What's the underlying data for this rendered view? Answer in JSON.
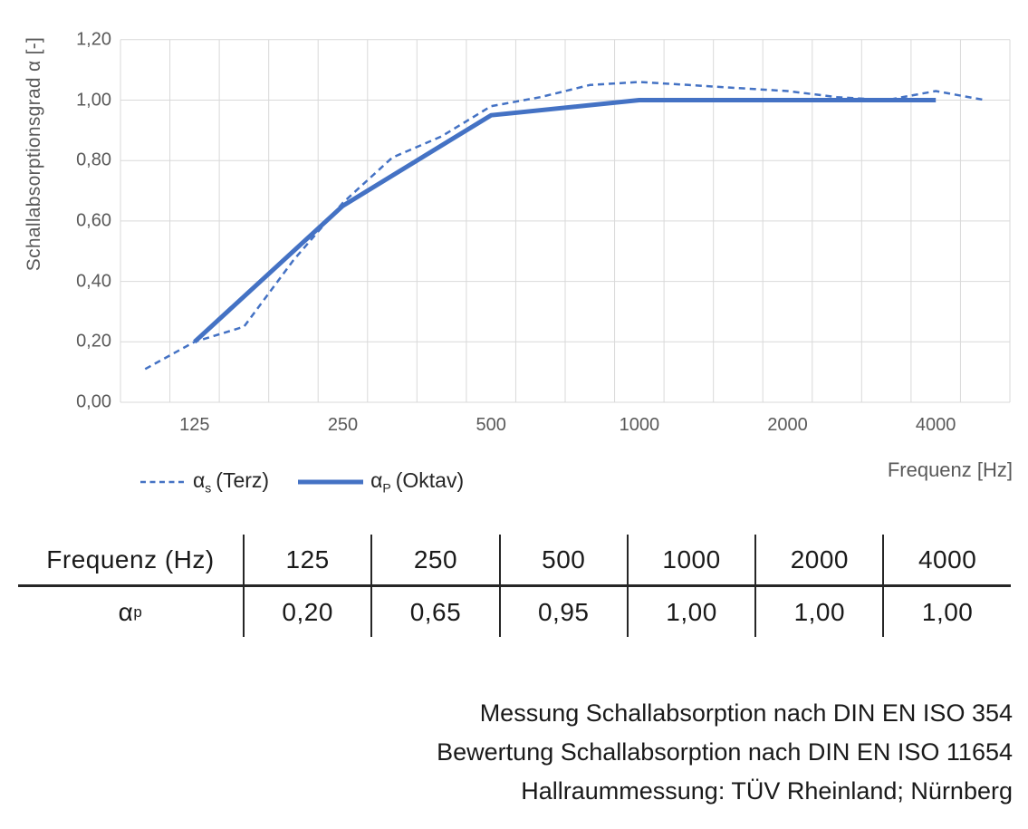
{
  "chart": {
    "y_axis_title": "Schallabsorptionsgrad α [-]",
    "x_axis_title": "Frequenz [Hz]",
    "y_tick_labels": [
      "1,20",
      "1,00",
      "0,80",
      "0,60",
      "0,40",
      "0,20",
      "0,00"
    ]
  },
  "chart_data": {
    "type": "line",
    "title": "",
    "xlabel": "Frequenz [Hz]",
    "ylabel": "Schallabsorptionsgrad α [-]",
    "x_categories": [
      "100",
      "125",
      "160",
      "200",
      "250",
      "315",
      "400",
      "500",
      "630",
      "800",
      "1000",
      "1250",
      "1600",
      "2000",
      "2500",
      "3150",
      "4000",
      "5000"
    ],
    "x_tick_labels": [
      "125",
      "250",
      "500",
      "1000",
      "2000",
      "4000"
    ],
    "ylim": [
      0,
      1.2
    ],
    "y_tick_step": 0.2,
    "grid": true,
    "legend_position": "bottom-left",
    "series": [
      {
        "id": "terz",
        "name": "αs (Terz)",
        "style": "dashed",
        "color": "#4472C4",
        "x": [
          "100",
          "125",
          "160",
          "200",
          "250",
          "315",
          "400",
          "500",
          "630",
          "800",
          "1000",
          "1250",
          "1600",
          "2000",
          "2500",
          "3150",
          "4000",
          "5000"
        ],
        "values": [
          0.11,
          0.2,
          0.25,
          0.47,
          0.66,
          0.81,
          0.88,
          0.98,
          1.01,
          1.05,
          1.06,
          1.05,
          1.04,
          1.03,
          1.01,
          1.0,
          1.03,
          1.0
        ]
      },
      {
        "id": "oktav",
        "name": "αP (Oktav)",
        "style": "solid",
        "color": "#4472C4",
        "x": [
          "125",
          "250",
          "500",
          "1000",
          "2000",
          "4000"
        ],
        "values": [
          0.2,
          0.65,
          0.95,
          1.0,
          1.0,
          1.0
        ]
      }
    ]
  },
  "legend": {
    "terz": {
      "symbol": "α",
      "sub": "s",
      "rest": "(Terz)"
    },
    "oktav": {
      "symbol": "α",
      "sub": "P",
      "rest": "(Oktav)"
    }
  },
  "table": {
    "header_label": "Frequenz (Hz)",
    "row_symbol": "α",
    "row_sub": "p",
    "frequencies": [
      "125",
      "250",
      "500",
      "1000",
      "2000",
      "4000"
    ],
    "values": [
      "0,20",
      "0,65",
      "0,95",
      "1,00",
      "1,00",
      "1,00"
    ]
  },
  "footnote_lines": [
    "Messung Schallabsorption nach DIN EN ISO 354",
    "Bewertung Schallabsorption nach DIN EN ISO 11654",
    "Hallraummessung: TÜV Rheinland; Nürnberg"
  ],
  "colors": {
    "series_blue": "#4472C4",
    "gridline": "#D9D9D9",
    "axis_text": "#595959",
    "table_text": "#1a1a1a"
  }
}
